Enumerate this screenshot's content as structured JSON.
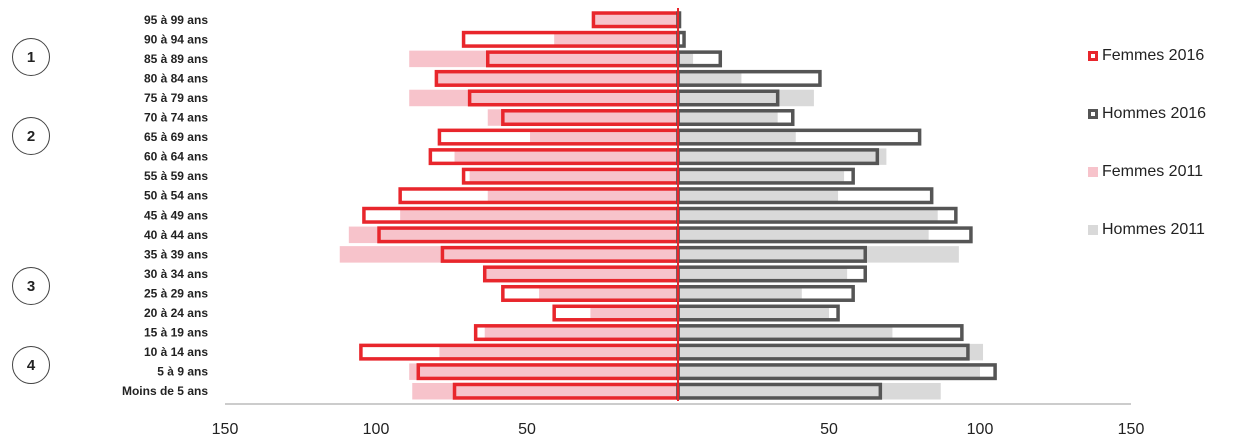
{
  "chart_data": {
    "type": "bar",
    "orientation": "horizontal",
    "categories": [
      "95 à 99 ans",
      "90 à 94 ans",
      "85 à 89 ans",
      "80 à 84 ans",
      "75 à 79 ans",
      "70 à 74 ans",
      "65 à 69 ans",
      "60 à 64 ans",
      "55 à 59 ans",
      "50 à 54 ans",
      "45 à 49 ans",
      "40 à 44 ans",
      "35 à 39 ans",
      "30 à 34 ans",
      "25 à 29 ans",
      "20 à 24 ans",
      "15 à 19 ans",
      "10 à 14 ans",
      "5 à 9 ans",
      "Moins de 5 ans"
    ],
    "series": [
      {
        "name": "Femmes 2016",
        "side": "left",
        "style": "outline",
        "color": "#e8262c",
        "values": [
          28,
          71,
          63,
          80,
          69,
          58,
          79,
          82,
          71,
          92,
          104,
          99,
          78,
          64,
          58,
          41,
          67,
          105,
          86,
          74
        ]
      },
      {
        "name": "Hommes 2016",
        "side": "right",
        "style": "outline",
        "color": "#555555",
        "values": [
          0.5,
          2,
          14,
          47,
          33,
          38,
          80,
          66,
          58,
          84,
          92,
          97,
          62,
          62,
          58,
          53,
          94,
          96,
          105,
          67
        ]
      },
      {
        "name": "Femmes 2011",
        "side": "left",
        "style": "fill",
        "color": "#f7c3cb",
        "values": [
          28,
          41,
          89,
          80,
          89,
          63,
          49,
          74,
          69,
          63,
          92,
          109,
          112,
          64,
          46,
          29,
          64,
          79,
          89,
          88
        ]
      },
      {
        "name": "Hommes 2011",
        "side": "right",
        "style": "fill",
        "color": "#d9d9d9",
        "values": [
          0,
          0,
          5,
          21,
          45,
          33,
          39,
          69,
          55,
          53,
          86,
          83,
          93,
          56,
          41,
          50,
          71,
          101,
          100,
          87
        ]
      }
    ],
    "xticks": [
      "150",
      "100",
      "50",
      "50",
      "100",
      "150"
    ],
    "xlim": [
      -150,
      150
    ],
    "grid": false,
    "legend_position": "right",
    "group_labels": [
      {
        "label": "1",
        "from": "90 à 94 ans",
        "to": "85 à 89 ans"
      },
      {
        "label": "2",
        "from": "70 à 74 ans",
        "to": "65 à 69 ans"
      },
      {
        "label": "3",
        "from": "30 à 34 ans",
        "to": "25 à 29 ans"
      },
      {
        "label": "4",
        "from": "10 à 14 ans",
        "to": "5 à 9 ans"
      }
    ]
  }
}
